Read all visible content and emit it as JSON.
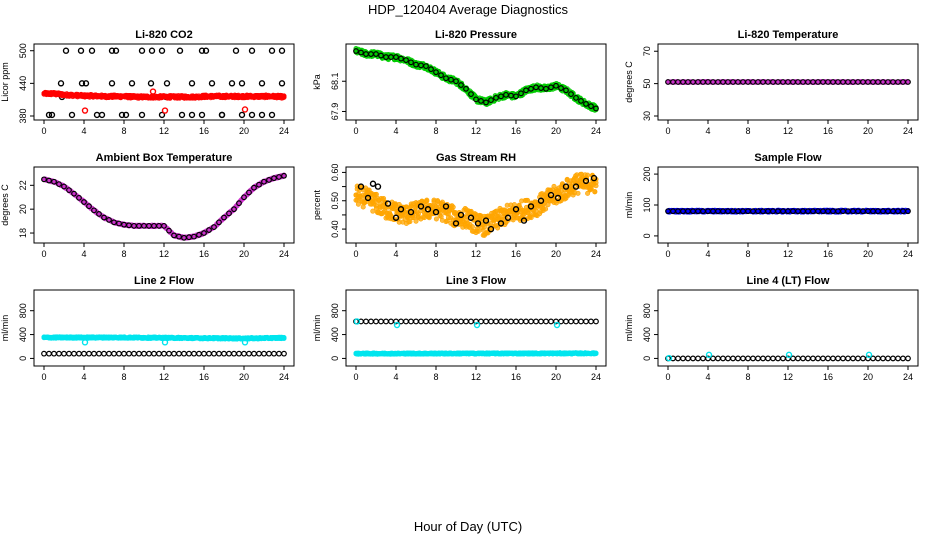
{
  "figure": {
    "title": "HDP_120404  Average Diagnostics",
    "xlabel": "Hour of Day (UTC)"
  },
  "colors": {
    "axis": "#000000",
    "point_outline": "#000000",
    "co2": "#ff0000",
    "pressure": "#00cc00",
    "temperature": "#cc33cc",
    "rh": "#ffa500",
    "flow_blue": "#0000ff",
    "cyan": "#00e5ee"
  },
  "chart_data": [
    {
      "type": "scatter",
      "title": "Li-820 CO2",
      "ylabel": "Licor ppm",
      "x_ticks": [
        0,
        4,
        8,
        12,
        16,
        20,
        24
      ],
      "xlim": [
        0,
        24
      ],
      "y_ticks": [
        380,
        440,
        500
      ],
      "ylim": [
        380,
        505
      ],
      "series": [
        {
          "role": "black",
          "style": "ring",
          "color": "#000000",
          "x": [
            0.5,
            1.8,
            2.2,
            3.7,
            4.8,
            5.8,
            6.8,
            7.2,
            8.2,
            9.8,
            10.8,
            11.8,
            12.2,
            13.6,
            14.8,
            15.8,
            16.2,
            17.8,
            19.2,
            19.8,
            20.8,
            21.8,
            22.8,
            23.8
          ],
          "y": [
            382,
            415,
            500,
            500,
            500,
            382,
            500,
            500,
            382,
            500,
            500,
            500,
            415,
            500,
            382,
            500,
            500,
            382,
            500,
            382,
            500,
            382,
            500,
            500
          ]
        },
        {
          "role": "black2",
          "style": "ring",
          "color": "#000000",
          "x": [
            0.8,
            1.7,
            2.8,
            3.8,
            4.2,
            5.3,
            6.8,
            7.8,
            8.8,
            9.8,
            10.7,
            11.8,
            12.3,
            13.8,
            14.8,
            15.8,
            16.8,
            17.8,
            18.8,
            19.8,
            20.8,
            21.8,
            22.8,
            23.8
          ],
          "y": [
            382,
            440,
            382,
            440,
            440,
            382,
            440,
            382,
            440,
            382,
            440,
            382,
            440,
            382,
            440,
            382,
            440,
            382,
            440,
            440,
            382,
            440,
            382,
            440
          ]
        },
        {
          "role": "main",
          "style": "dense",
          "color": "#ff0000",
          "x": [
            0,
            1,
            2,
            3,
            4,
            5,
            6,
            7,
            8,
            9,
            10,
            11,
            12,
            13,
            14,
            15,
            16,
            17,
            18,
            19,
            20,
            21,
            22,
            23,
            24
          ],
          "y": [
            421,
            421,
            419,
            418,
            417,
            417,
            416,
            416,
            416,
            415,
            415,
            415,
            415,
            415,
            415,
            415,
            416,
            416,
            416,
            416,
            416,
            416,
            416,
            416,
            415
          ],
          "spread": 2.5
        },
        {
          "role": "outliers",
          "style": "ring",
          "color": "#ff0000",
          "x": [
            4.1,
            10.9,
            12.1,
            20.1
          ],
          "y": [
            390,
            425,
            390,
            392
          ]
        }
      ]
    },
    {
      "type": "scatter",
      "title": "Li-820 Pressure",
      "ylabel": "kPa",
      "x_ticks": [
        0,
        4,
        8,
        12,
        16,
        20,
        24
      ],
      "xlim": [
        0,
        24
      ],
      "y_ticks": [
        67.9,
        68.1
      ],
      "ylim": [
        67.87,
        68.32
      ],
      "series": [
        {
          "role": "main",
          "style": "dense",
          "color": "#00cc00",
          "x": [
            0,
            1,
            2,
            3,
            4,
            5,
            6,
            7,
            8,
            9,
            10,
            11,
            12,
            13,
            14,
            15,
            16,
            17,
            18,
            19,
            20,
            21,
            22,
            23,
            24
          ],
          "y": [
            68.3,
            68.28,
            68.28,
            68.26,
            68.26,
            68.24,
            68.21,
            68.2,
            68.16,
            68.12,
            68.1,
            68.05,
            67.98,
            67.96,
            67.99,
            68.01,
            68.0,
            68.04,
            68.06,
            68.05,
            68.07,
            68.04,
            67.99,
            67.95,
            67.92
          ],
          "spread": 0.018
        },
        {
          "role": "black",
          "style": "ring",
          "color": "#000000",
          "x": [
            0,
            1,
            2,
            3,
            4,
            5,
            6,
            7,
            8,
            9,
            10,
            11,
            12,
            13,
            14,
            15,
            16,
            17,
            18,
            19,
            20,
            21,
            22,
            23,
            24
          ],
          "y": [
            68.3,
            68.28,
            68.28,
            68.26,
            68.26,
            68.24,
            68.21,
            68.2,
            68.16,
            68.12,
            68.1,
            68.05,
            67.98,
            67.96,
            67.99,
            68.01,
            68.0,
            68.04,
            68.06,
            68.05,
            68.07,
            68.04,
            67.99,
            67.95,
            67.92
          ],
          "every": 0.5
        }
      ]
    },
    {
      "type": "scatter",
      "title": "Li-820 Temperature",
      "ylabel": "degrees C",
      "x_ticks": [
        0,
        4,
        8,
        12,
        16,
        20,
        24
      ],
      "xlim": [
        0,
        24
      ],
      "y_ticks": [
        30,
        50,
        70
      ],
      "ylim": [
        30,
        72
      ],
      "series": [
        {
          "role": "main",
          "style": "dense",
          "color": "#cc33cc",
          "x": [
            0,
            24
          ],
          "y": [
            51,
            51
          ],
          "spread": 0.2
        },
        {
          "role": "black",
          "style": "ring",
          "color": "#000000",
          "x": [
            0,
            24
          ],
          "y": [
            51,
            51
          ],
          "every": 0.5
        }
      ]
    },
    {
      "type": "scatter",
      "title": "Ambient Box Temperature",
      "ylabel": "degrees C",
      "x_ticks": [
        0,
        4,
        8,
        12,
        16,
        20,
        24
      ],
      "xlim": [
        0,
        24
      ],
      "y_ticks": [
        18,
        20,
        22
      ],
      "ylim": [
        17.5,
        23.2
      ],
      "series": [
        {
          "role": "main",
          "style": "dense",
          "color": "#cc33cc",
          "x": [
            0,
            1,
            2,
            3,
            4,
            5,
            6,
            7,
            8,
            9,
            10,
            11,
            12,
            13,
            14,
            15,
            16,
            17,
            18,
            19,
            20,
            21,
            22,
            23,
            24
          ],
          "y": [
            22.5,
            22.3,
            21.9,
            21.3,
            20.6,
            19.9,
            19.3,
            18.9,
            18.7,
            18.6,
            18.6,
            18.6,
            18.6,
            17.8,
            17.6,
            17.7,
            18.0,
            18.5,
            19.3,
            20.0,
            21.0,
            21.8,
            22.3,
            22.6,
            22.8
          ],
          "spread": 0.06
        },
        {
          "role": "black",
          "style": "ring",
          "color": "#000000",
          "x": [
            0,
            1,
            2,
            3,
            4,
            5,
            6,
            7,
            8,
            9,
            10,
            11,
            12,
            13,
            14,
            15,
            16,
            17,
            18,
            19,
            20,
            21,
            22,
            23,
            24
          ],
          "y": [
            22.5,
            22.3,
            21.9,
            21.3,
            20.6,
            19.9,
            19.3,
            18.9,
            18.7,
            18.6,
            18.6,
            18.6,
            18.6,
            17.8,
            17.6,
            17.7,
            18.0,
            18.5,
            19.3,
            20.0,
            21.0,
            21.8,
            22.3,
            22.6,
            22.8
          ],
          "every": 0.5
        }
      ]
    },
    {
      "type": "scatter",
      "title": "Gas Stream RH",
      "ylabel": "percent",
      "x_ticks": [
        0,
        4,
        8,
        12,
        16,
        20,
        24
      ],
      "xlim": [
        0,
        24
      ],
      "y_ticks": [
        0.4,
        0.45,
        0.5,
        0.55,
        0.6
      ],
      "y_labels": [
        "0.40",
        "",
        "0.50",
        "",
        "0.60"
      ],
      "ylim": [
        0.365,
        0.605
      ],
      "series": [
        {
          "role": "main",
          "style": "dense",
          "color": "#ffa500",
          "x": [
            0,
            1,
            2,
            3,
            4,
            5,
            6,
            7,
            8,
            9,
            10,
            11,
            12,
            13,
            14,
            15,
            16,
            17,
            18,
            19,
            20,
            21,
            22,
            23,
            24
          ],
          "y": [
            0.52,
            0.51,
            0.49,
            0.47,
            0.46,
            0.45,
            0.46,
            0.47,
            0.47,
            0.46,
            0.44,
            0.44,
            0.42,
            0.41,
            0.43,
            0.45,
            0.46,
            0.47,
            0.48,
            0.5,
            0.52,
            0.54,
            0.56,
            0.56,
            0.56
          ],
          "spread": 0.035
        },
        {
          "role": "black",
          "style": "ring",
          "color": "#000000",
          "x": [
            0.5,
            1.2,
            1.7,
            2.2,
            3.2,
            4.0,
            4.5,
            5.5,
            6.5,
            7.2,
            8.0,
            9.0,
            10.0,
            10.5,
            11.5,
            12.2,
            13.0,
            13.5,
            14.5,
            15.2,
            16.0,
            16.8,
            17.5,
            18.5,
            19.5,
            20.2,
            21.0,
            22.0,
            23.0,
            23.8
          ],
          "y": [
            0.55,
            0.51,
            0.56,
            0.55,
            0.49,
            0.44,
            0.47,
            0.46,
            0.48,
            0.47,
            0.46,
            0.48,
            0.42,
            0.45,
            0.44,
            0.42,
            0.43,
            0.4,
            0.42,
            0.44,
            0.47,
            0.43,
            0.48,
            0.5,
            0.52,
            0.51,
            0.55,
            0.55,
            0.57,
            0.58
          ]
        }
      ]
    },
    {
      "type": "scatter",
      "title": "Sample Flow",
      "ylabel": "ml/min",
      "x_ticks": [
        0,
        4,
        8,
        12,
        16,
        20,
        24
      ],
      "xlim": [
        0,
        24
      ],
      "y_ticks": [
        0,
        100,
        200
      ],
      "ylim": [
        -10,
        210
      ],
      "series": [
        {
          "role": "main",
          "style": "dense",
          "color": "#0000ff",
          "x": [
            0,
            24
          ],
          "y": [
            80,
            80
          ],
          "spread": 3
        },
        {
          "role": "black",
          "style": "ring",
          "color": "#000000",
          "x": [
            0,
            24
          ],
          "y": [
            80,
            80
          ],
          "every": 0.5
        }
      ]
    },
    {
      "type": "scatter",
      "title": "Line 2 Flow",
      "ylabel": "ml/min",
      "x_ticks": [
        0,
        4,
        8,
        12,
        16,
        20,
        24
      ],
      "xlim": [
        0,
        24
      ],
      "y_ticks": [
        0,
        400,
        800
      ],
      "ylim": [
        -60,
        1080
      ],
      "series": [
        {
          "role": "main",
          "style": "dense",
          "color": "#00e5ee",
          "x": [
            0,
            4,
            8,
            12,
            16,
            20,
            24
          ],
          "y": [
            350,
            350,
            350,
            345,
            340,
            335,
            345
          ],
          "spread": 12
        },
        {
          "role": "outliers",
          "style": "ring",
          "color": "#00e5ee",
          "x": [
            4.1,
            12.1,
            20.1
          ],
          "y": [
            270,
            270,
            270
          ]
        },
        {
          "role": "black",
          "style": "ring",
          "color": "#000000",
          "x": [
            0,
            24
          ],
          "y": [
            80,
            80
          ],
          "every": 0.5
        }
      ]
    },
    {
      "type": "scatter",
      "title": "Line 3 Flow",
      "ylabel": "ml/min",
      "x_ticks": [
        0,
        4,
        8,
        12,
        16,
        20,
        24
      ],
      "xlim": [
        0,
        24
      ],
      "y_ticks": [
        0,
        400,
        800
      ],
      "ylim": [
        -60,
        1080
      ],
      "series": [
        {
          "role": "main",
          "style": "dense",
          "color": "#00e5ee",
          "x": [
            0,
            24
          ],
          "y": [
            80,
            85
          ],
          "spread": 10
        },
        {
          "role": "black",
          "style": "ring",
          "color": "#000000",
          "x": [
            0,
            24
          ],
          "y": [
            620,
            620
          ],
          "every": 0.5
        },
        {
          "role": "outliers",
          "style": "ring",
          "color": "#00e5ee",
          "x": [
            0.1,
            4.1,
            12.1,
            20.1
          ],
          "y": [
            620,
            560,
            560,
            560
          ]
        }
      ]
    },
    {
      "type": "scatter",
      "title": "Line 4 (LT) Flow",
      "ylabel": "ml/min",
      "x_ticks": [
        0,
        4,
        8,
        12,
        16,
        20,
        24
      ],
      "xlim": [
        0,
        24
      ],
      "y_ticks": [
        0,
        400,
        800
      ],
      "ylim": [
        -60,
        1080
      ],
      "series": [
        {
          "role": "black",
          "style": "ring",
          "color": "#000000",
          "x": [
            0,
            24
          ],
          "y": [
            0,
            0
          ],
          "every": 0.5
        },
        {
          "role": "outliers",
          "style": "ring",
          "color": "#00e5ee",
          "x": [
            0.1,
            4.1,
            12.1,
            20.1
          ],
          "y": [
            5,
            60,
            60,
            60
          ]
        }
      ]
    }
  ]
}
